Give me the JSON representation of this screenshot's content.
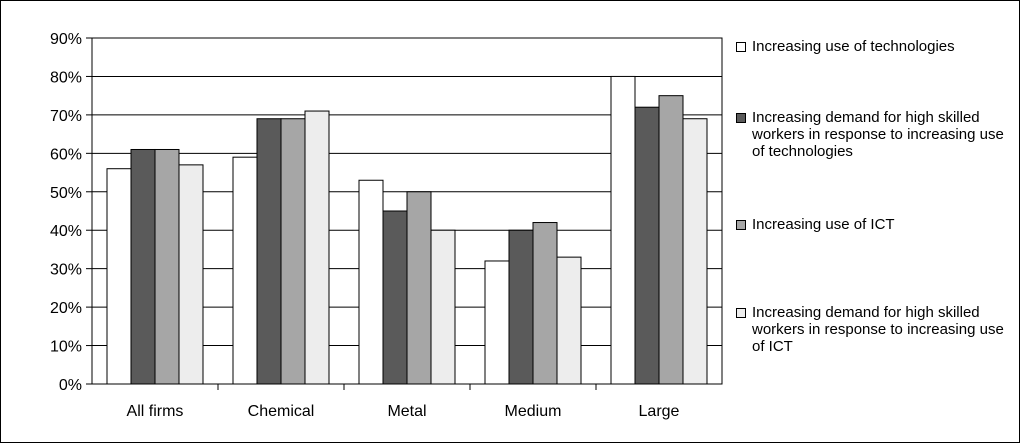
{
  "chart_data": {
    "type": "bar",
    "categories": [
      "All firms",
      "Chemical",
      "Metal",
      "Medium",
      "Large"
    ],
    "series": [
      {
        "name": "Increasing use of technologies",
        "values": [
          56,
          59,
          53,
          32,
          80
        ],
        "color": "#ffffff"
      },
      {
        "name": "Increasing demand for high skilled workers in response to increasing use of technologies",
        "values": [
          61,
          69,
          45,
          40,
          72
        ],
        "color": "#5a5a5a"
      },
      {
        "name": "Increasing use of ICT",
        "values": [
          61,
          69,
          50,
          42,
          75
        ],
        "color": "#a6a6a6"
      },
      {
        "name": "Increasing demand for high skilled workers in response to increasing use of ICT",
        "values": [
          57,
          71,
          40,
          33,
          69
        ],
        "color": "#ededed"
      }
    ],
    "y_ticks": [
      "0%",
      "10%",
      "20%",
      "30%",
      "40%",
      "50%",
      "60%",
      "70%",
      "80%",
      "90%"
    ],
    "ylim": [
      0,
      90
    ],
    "grid": true,
    "legend_position": "right"
  }
}
